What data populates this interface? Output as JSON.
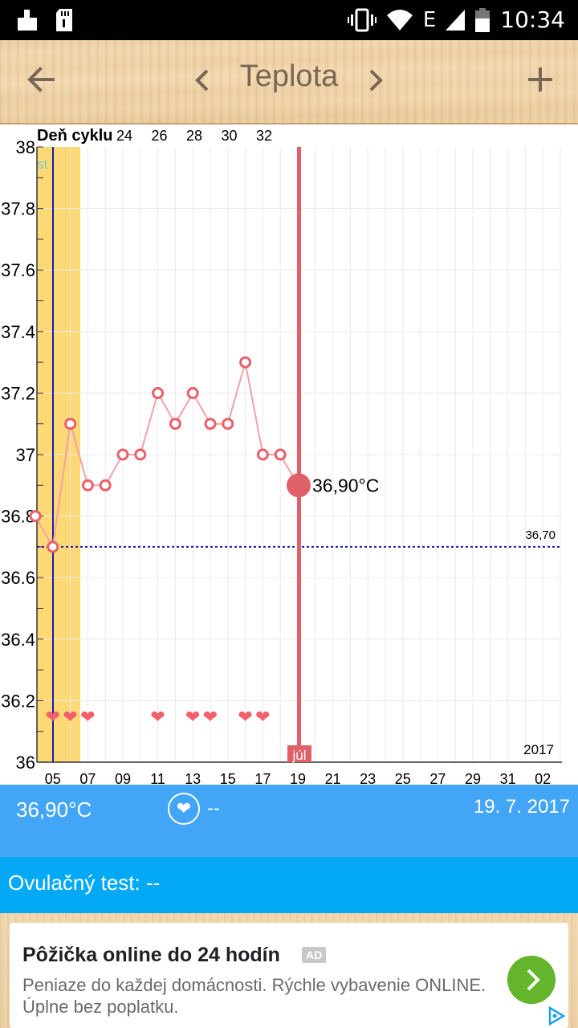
{
  "status_bar": {
    "time": "10:34",
    "network": "E"
  },
  "toolbar": {
    "title": "Teplota",
    "back_icon": "arrow-back-icon",
    "prev_icon": "chevron-left-icon",
    "next_icon": "chevron-right-icon",
    "add_icon": "plus-icon"
  },
  "chart_data": {
    "type": "line",
    "ylim": [
      36,
      38
    ],
    "y_ticks": [
      "38",
      "37.8",
      "37.6",
      "37.4",
      "37.2",
      "37",
      "36.8",
      "36.6",
      "36.4",
      "36.2",
      "36"
    ],
    "x_tick_labels": [
      "05",
      "07",
      "09",
      "11",
      "13",
      "15",
      "17",
      "19",
      "21",
      "23",
      "25",
      "27",
      "29",
      "31",
      "02"
    ],
    "cycle_day_label": "Deň cyklu",
    "cycle_day_ticks": [
      "24",
      "26",
      "28",
      "30",
      "32"
    ],
    "period_marker": "st",
    "year_label": "2017",
    "month_label": "júl",
    "coverline": {
      "value": 36.7,
      "label": "36,70"
    },
    "selected": {
      "value": 36.9,
      "label": "36,90°C"
    },
    "series": [
      {
        "values": [
          36.8,
          36.7,
          37.1,
          36.9,
          36.9,
          37.0,
          37.0,
          37.2,
          37.1,
          37.2,
          37.1,
          37.1,
          37.3,
          37.0,
          37.0,
          36.9
        ]
      }
    ],
    "heart_count": 8
  },
  "info": {
    "temperature": "36,90°C",
    "sex_value": "--",
    "date": "19. 7. 2017"
  },
  "ovulation": {
    "text": "Ovulačný test: --"
  },
  "ad": {
    "title": "Pôžička online do 24 hodín",
    "badge": "AD",
    "description": "Peniaze do každej domácnosti. Rýchle vybavenie ONLINE. Úplne bez poplatku."
  },
  "colors": {
    "accent_blue": "#42a5f5",
    "ovu_blue": "#03a9f4",
    "temp_red": "#e8606a",
    "period_yellow": "#fcd975",
    "ad_green": "#64b52c"
  }
}
